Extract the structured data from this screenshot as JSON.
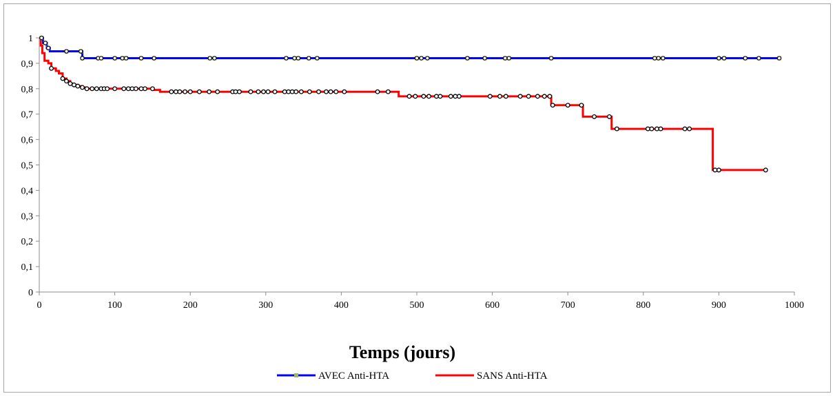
{
  "chart_data": {
    "type": "line",
    "title": "",
    "xlabel": "Temps (jours)",
    "ylabel": "",
    "xlim": [
      0,
      1000
    ],
    "ylim": [
      0,
      1
    ],
    "x_ticks": [
      0,
      100,
      200,
      300,
      400,
      500,
      600,
      700,
      800,
      900,
      1000
    ],
    "x_tick_labels": [
      "0",
      "100",
      "200",
      "300",
      "400",
      "500",
      "600",
      "700",
      "800",
      "900",
      "1000"
    ],
    "y_ticks": [
      0,
      0.1,
      0.2,
      0.3,
      0.4,
      0.5,
      0.6,
      0.7,
      0.8,
      0.9,
      1
    ],
    "y_tick_labels": [
      "0",
      "0,1",
      "0,2",
      "0,3",
      "0,4",
      "0,5",
      "0,6",
      "0,7",
      "0,8",
      "0,9",
      "1"
    ],
    "grid": false,
    "legend_position": "bottom",
    "step": true,
    "series": [
      {
        "name": "AVEC Anti-HTA",
        "color": "#0000ff",
        "marker_color": "#9bbb59",
        "steps": [
          [
            0,
            1
          ],
          [
            5,
            0.98
          ],
          [
            10,
            0.96
          ],
          [
            14,
            0.947
          ],
          [
            57,
            0.92
          ],
          [
            980,
            0.92
          ]
        ],
        "censored": [
          [
            3,
            1
          ],
          [
            8,
            0.98
          ],
          [
            12,
            0.96
          ],
          [
            36,
            0.947
          ],
          [
            55,
            0.947
          ],
          [
            57,
            0.92
          ],
          [
            78,
            0.92
          ],
          [
            82,
            0.92
          ],
          [
            100,
            0.92
          ],
          [
            110,
            0.92
          ],
          [
            115,
            0.92
          ],
          [
            135,
            0.92
          ],
          [
            152,
            0.92
          ],
          [
            226,
            0.92
          ],
          [
            232,
            0.92
          ],
          [
            327,
            0.92
          ],
          [
            338,
            0.92
          ],
          [
            343,
            0.92
          ],
          [
            357,
            0.92
          ],
          [
            368,
            0.92
          ],
          [
            500,
            0.92
          ],
          [
            506,
            0.92
          ],
          [
            514,
            0.92
          ],
          [
            567,
            0.92
          ],
          [
            590,
            0.92
          ],
          [
            617,
            0.92
          ],
          [
            622,
            0.92
          ],
          [
            678,
            0.92
          ],
          [
            815,
            0.92
          ],
          [
            820,
            0.92
          ],
          [
            826,
            0.92
          ],
          [
            900,
            0.92
          ],
          [
            907,
            0.92
          ],
          [
            935,
            0.92
          ],
          [
            953,
            0.92
          ],
          [
            980,
            0.92
          ]
        ]
      },
      {
        "name": "SANS Anti-HTA",
        "color": "#ff0000",
        "marker_color": "#000000",
        "steps": [
          [
            0,
            1
          ],
          [
            2,
            0.97
          ],
          [
            4,
            0.94
          ],
          [
            7,
            0.91
          ],
          [
            12,
            0.9
          ],
          [
            16,
            0.88
          ],
          [
            22,
            0.87
          ],
          [
            26,
            0.86
          ],
          [
            31,
            0.84
          ],
          [
            36,
            0.83
          ],
          [
            41,
            0.82
          ],
          [
            46,
            0.815
          ],
          [
            51,
            0.81
          ],
          [
            57,
            0.805
          ],
          [
            63,
            0.8
          ],
          [
            150,
            0.795
          ],
          [
            160,
            0.788
          ],
          [
            476,
            0.77
          ],
          [
            678,
            0.735
          ],
          [
            720,
            0.69
          ],
          [
            758,
            0.642
          ],
          [
            892,
            0.48
          ],
          [
            963,
            0.48
          ]
        ],
        "censored": [
          [
            16,
            0.88
          ],
          [
            31,
            0.84
          ],
          [
            36,
            0.83
          ],
          [
            41,
            0.82
          ],
          [
            46,
            0.815
          ],
          [
            51,
            0.81
          ],
          [
            57,
            0.805
          ],
          [
            63,
            0.8
          ],
          [
            70,
            0.8
          ],
          [
            76,
            0.8
          ],
          [
            82,
            0.8
          ],
          [
            86,
            0.8
          ],
          [
            90,
            0.8
          ],
          [
            100,
            0.8
          ],
          [
            112,
            0.8
          ],
          [
            118,
            0.8
          ],
          [
            123,
            0.8
          ],
          [
            128,
            0.8
          ],
          [
            135,
            0.8
          ],
          [
            140,
            0.8
          ],
          [
            150,
            0.8
          ],
          [
            175,
            0.788
          ],
          [
            181,
            0.788
          ],
          [
            186,
            0.788
          ],
          [
            193,
            0.788
          ],
          [
            200,
            0.788
          ],
          [
            212,
            0.788
          ],
          [
            225,
            0.788
          ],
          [
            236,
            0.788
          ],
          [
            256,
            0.788
          ],
          [
            260,
            0.788
          ],
          [
            265,
            0.788
          ],
          [
            280,
            0.788
          ],
          [
            290,
            0.788
          ],
          [
            297,
            0.788
          ],
          [
            303,
            0.788
          ],
          [
            312,
            0.788
          ],
          [
            325,
            0.788
          ],
          [
            330,
            0.788
          ],
          [
            335,
            0.788
          ],
          [
            340,
            0.788
          ],
          [
            347,
            0.788
          ],
          [
            358,
            0.788
          ],
          [
            370,
            0.788
          ],
          [
            380,
            0.788
          ],
          [
            386,
            0.788
          ],
          [
            393,
            0.788
          ],
          [
            404,
            0.788
          ],
          [
            448,
            0.788
          ],
          [
            462,
            0.788
          ],
          [
            490,
            0.77
          ],
          [
            498,
            0.77
          ],
          [
            509,
            0.77
          ],
          [
            516,
            0.77
          ],
          [
            526,
            0.77
          ],
          [
            531,
            0.77
          ],
          [
            545,
            0.77
          ],
          [
            551,
            0.77
          ],
          [
            556,
            0.77
          ],
          [
            597,
            0.77
          ],
          [
            610,
            0.77
          ],
          [
            618,
            0.77
          ],
          [
            637,
            0.77
          ],
          [
            648,
            0.77
          ],
          [
            660,
            0.77
          ],
          [
            669,
            0.77
          ],
          [
            676,
            0.77
          ],
          [
            680,
            0.735
          ],
          [
            700,
            0.735
          ],
          [
            718,
            0.735
          ],
          [
            735,
            0.69
          ],
          [
            755,
            0.69
          ],
          [
            765,
            0.642
          ],
          [
            806,
            0.642
          ],
          [
            811,
            0.642
          ],
          [
            818,
            0.642
          ],
          [
            823,
            0.642
          ],
          [
            855,
            0.642
          ],
          [
            861,
            0.642
          ],
          [
            895,
            0.48
          ],
          [
            900,
            0.48
          ],
          [
            962,
            0.48
          ]
        ]
      }
    ]
  }
}
